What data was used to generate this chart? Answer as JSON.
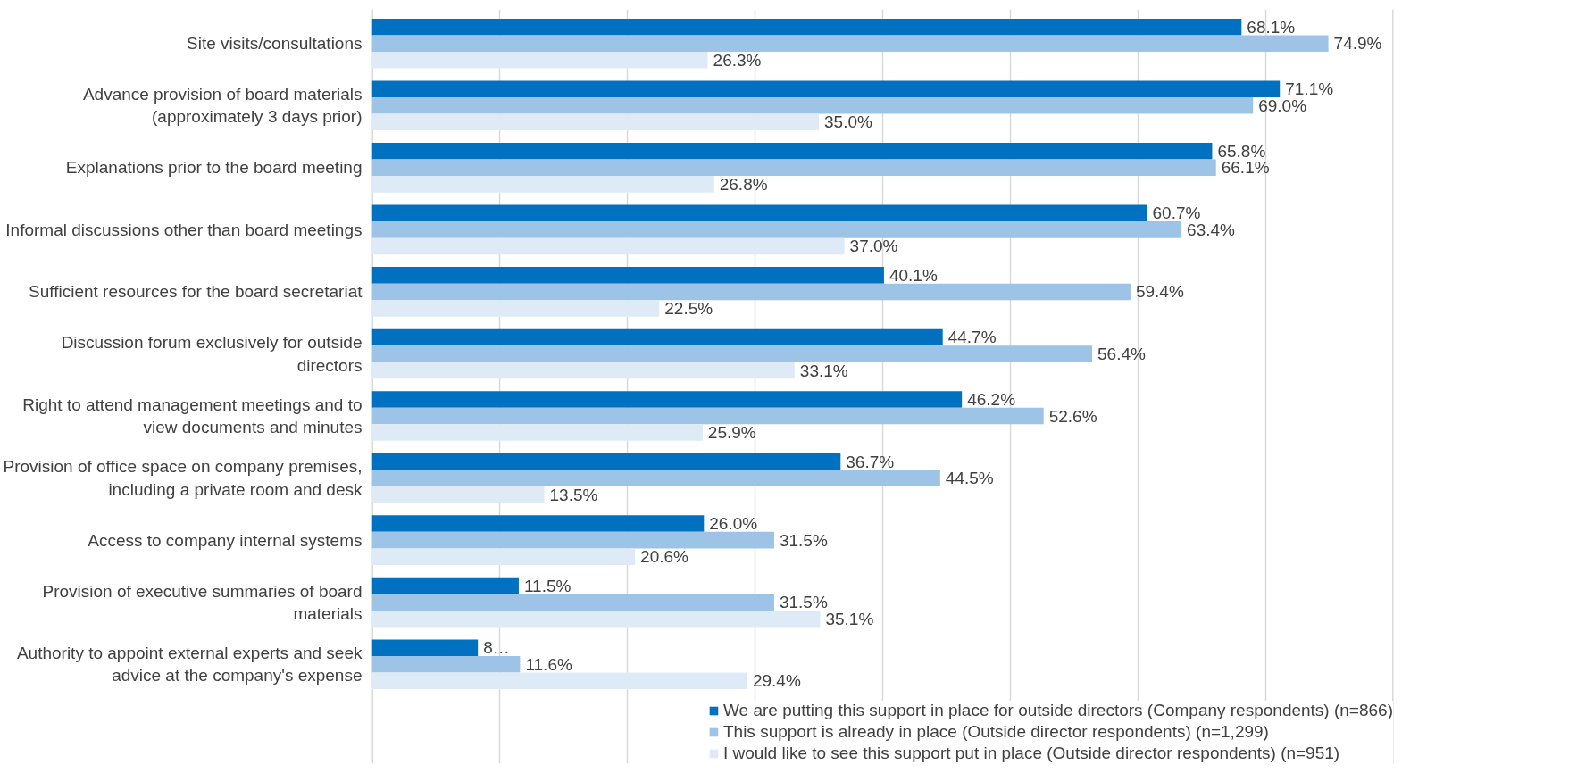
{
  "chart_data": {
    "type": "bar",
    "orientation": "horizontal",
    "categories": [
      "Site visits/consultations",
      "Advance provision of board materials (approximately 3 days prior)",
      "Explanations prior to the board meeting",
      "Informal discussions other than board meetings",
      "Sufficient resources for the board secretariat",
      "Discussion forum exclusively for outside directors",
      "Right to attend management meetings and to view documents and minutes",
      "Provision of office space on company premises, including a private room and desk",
      "Access to company internal systems",
      "Provision of executive summaries of board materials",
      "Authority to appoint external experts and seek advice at the company's expense"
    ],
    "series": [
      {
        "name": "We are putting this support in place for outside directors (Company respondents) (n=866)",
        "color": "#0070c0",
        "values": [
          68.1,
          71.1,
          65.8,
          60.7,
          40.1,
          44.7,
          46.2,
          36.7,
          26.0,
          11.5,
          8.3
        ],
        "value_labels": [
          "68.1%",
          "71.1%",
          "65.8%",
          "60.7%",
          "40.1%",
          "44.7%",
          "46.2%",
          "36.7%",
          "26.0%",
          "11.5%",
          "8…"
        ]
      },
      {
        "name": "This support is already in place (Outside director respondents) (n=1,299)",
        "color": "#9dc3e6",
        "values": [
          74.9,
          69.0,
          66.1,
          63.4,
          59.4,
          56.4,
          52.6,
          44.5,
          31.5,
          31.5,
          11.6
        ],
        "value_labels": [
          "74.9%",
          "69.0%",
          "66.1%",
          "63.4%",
          "59.4%",
          "56.4%",
          "52.6%",
          "44.5%",
          "31.5%",
          "31.5%",
          "11.6%"
        ]
      },
      {
        "name": "I would like to see this support put in place (Outside director respondents) (n=951)",
        "color": "#deebf7",
        "values": [
          26.3,
          35.0,
          26.8,
          37.0,
          22.5,
          33.1,
          25.9,
          13.5,
          20.6,
          35.1,
          29.4
        ],
        "value_labels": [
          "26.3%",
          "35.0%",
          "26.8%",
          "37.0%",
          "22.5%",
          "33.1%",
          "25.9%",
          "13.5%",
          "20.6%",
          "35.1%",
          "29.4%"
        ]
      }
    ],
    "xticks": [
      {
        "value": 0,
        "label": null
      },
      {
        "value": 10,
        "label": null
      },
      {
        "value": 20,
        "label": null
      },
      {
        "value": 30,
        "label": null
      },
      {
        "value": 40,
        "label": null
      },
      {
        "value": 50,
        "label": null
      },
      {
        "value": 60,
        "label": null
      },
      {
        "value": 70,
        "label": null
      },
      {
        "value": 80,
        "label": null
      }
    ],
    "grid": "x",
    "tick_labels": "y",
    "legend": "bottom right"
  }
}
